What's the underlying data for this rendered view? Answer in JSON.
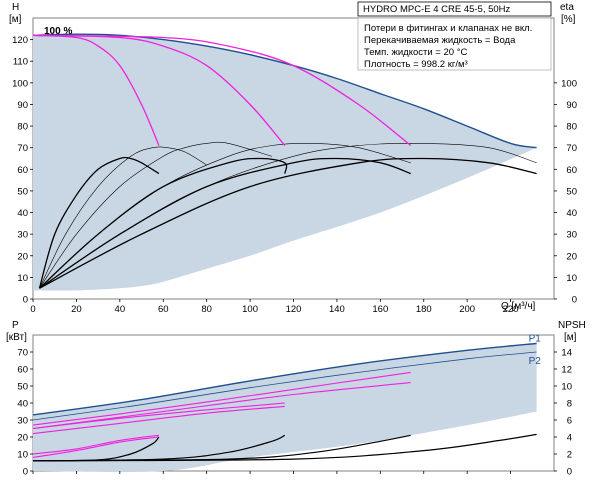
{
  "chart_data": [
    {
      "type": "line",
      "id": "upper",
      "left_axis": {
        "label": "H",
        "unit": "[м]",
        "range": [
          0,
          130
        ],
        "ticks": [
          0,
          10,
          20,
          30,
          40,
          50,
          60,
          70,
          80,
          90,
          100,
          110,
          120
        ]
      },
      "right_axis": {
        "label": "eta",
        "unit": "[%]",
        "range": [
          0,
          130
        ],
        "ticks": [
          0,
          10,
          20,
          30,
          40,
          50,
          60,
          70,
          80,
          90,
          100
        ]
      },
      "x_axis": {
        "label": "Q [м³/ч]",
        "range": [
          0,
          240
        ],
        "ticks": [
          0,
          20,
          40,
          60,
          80,
          100,
          120,
          140,
          160,
          180,
          200,
          220
        ]
      },
      "info_box": {
        "title": "HYDRO MPC-E 4 CRE 45-5, 50Hz",
        "lines": [
          "Потери в фитингах и клапанах не вкл.",
          "Перекачиваемая жидкость = Вода",
          "Темп. жидкости = 20 °C",
          "Плотность = 998.2 кг/м³"
        ]
      },
      "speed_label": "100 %",
      "grid": false,
      "colors": {
        "envelope_fill": "#c9d6e4",
        "envelope_edge": "#1f4f8f",
        "system": "#ee22dd",
        "efficiency": "#000000"
      },
      "envelope_top": [
        [
          0,
          122
        ],
        [
          20,
          122.5
        ],
        [
          40,
          122
        ],
        [
          60,
          120
        ],
        [
          80,
          117
        ],
        [
          100,
          113
        ],
        [
          120,
          108
        ],
        [
          140,
          102
        ],
        [
          160,
          95
        ],
        [
          180,
          88
        ],
        [
          200,
          80
        ],
        [
          220,
          72
        ],
        [
          232,
          70
        ]
      ],
      "envelope_bottom": [
        [
          232,
          70
        ],
        [
          200,
          56
        ],
        [
          160,
          40
        ],
        [
          120,
          27
        ],
        [
          100,
          20
        ],
        [
          80,
          14
        ],
        [
          60,
          8
        ],
        [
          50,
          6
        ],
        [
          40,
          5
        ],
        [
          20,
          4
        ],
        [
          0,
          4
        ]
      ],
      "system_curves": [
        {
          "points": [
            [
              0,
              122
            ],
            [
              20,
              121
            ],
            [
              30,
              117
            ],
            [
              40,
              108
            ],
            [
              50,
              90
            ],
            [
              58,
              71
            ]
          ]
        },
        {
          "points": [
            [
              0,
              122
            ],
            [
              40,
              121
            ],
            [
              60,
              117
            ],
            [
              80,
              108
            ],
            [
              100,
              90
            ],
            [
              116,
              71
            ]
          ]
        },
        {
          "points": [
            [
              0,
              122
            ],
            [
              60,
              121
            ],
            [
              90,
              117
            ],
            [
              120,
              108
            ],
            [
              150,
              90
            ],
            [
              174,
              71
            ]
          ]
        }
      ],
      "efficiency_curves": [
        {
          "weight": "bold",
          "points": [
            [
              3,
              5
            ],
            [
              10,
              30
            ],
            [
              20,
              48
            ],
            [
              30,
              60
            ],
            [
              40,
              65
            ],
            [
              45,
              65
            ],
            [
              50,
              63
            ],
            [
              58,
              58
            ]
          ]
        },
        {
          "weight": "thin",
          "points": [
            [
              3,
              5
            ],
            [
              15,
              30
            ],
            [
              30,
              52
            ],
            [
              45,
              66
            ],
            [
              55,
              70
            ],
            [
              62,
              70
            ],
            [
              70,
              68
            ],
            [
              80,
              62
            ]
          ]
        },
        {
          "weight": "thin",
          "points": [
            [
              3,
              5
            ],
            [
              20,
              30
            ],
            [
              40,
              52
            ],
            [
              60,
              66
            ],
            [
              70,
              70
            ],
            [
              80,
              72
            ],
            [
              90,
              72
            ],
            [
              110,
              66
            ]
          ]
        },
        {
          "weight": "bold",
          "points": [
            [
              3,
              5
            ],
            [
              30,
              30
            ],
            [
              60,
              52
            ],
            [
              90,
              63
            ],
            [
              105,
              65
            ],
            [
              116,
              63
            ],
            [
              116,
              58
            ]
          ]
        },
        {
          "weight": "thin",
          "points": [
            [
              3,
              5
            ],
            [
              30,
              30
            ],
            [
              60,
              52
            ],
            [
              90,
              66
            ],
            [
              110,
              71
            ],
            [
              130,
              72
            ],
            [
              150,
              70
            ],
            [
              174,
              63
            ]
          ]
        },
        {
          "weight": "bold",
          "points": [
            [
              3,
              5
            ],
            [
              40,
              30
            ],
            [
              80,
              52
            ],
            [
              120,
              63
            ],
            [
              140,
              65
            ],
            [
              160,
              63
            ],
            [
              174,
              58
            ]
          ]
        },
        {
          "weight": "thin",
          "points": [
            [
              3,
              5
            ],
            [
              40,
              30
            ],
            [
              80,
              52
            ],
            [
              120,
              66
            ],
            [
              150,
              71
            ],
            [
              180,
              72
            ],
            [
              210,
              70
            ],
            [
              232,
              63
            ]
          ]
        },
        {
          "weight": "bold",
          "points": [
            [
              3,
              5
            ],
            [
              50,
              30
            ],
            [
              100,
              52
            ],
            [
              150,
              63
            ],
            [
              180,
              65
            ],
            [
              210,
              63
            ],
            [
              232,
              58
            ]
          ]
        }
      ]
    },
    {
      "type": "line",
      "id": "lower",
      "left_axis": {
        "label": "P",
        "unit": "[кВт]",
        "range": [
          0,
          80
        ],
        "ticks": [
          0,
          10,
          20,
          30,
          40,
          50,
          60,
          70
        ]
      },
      "right_axis": {
        "label": "NPSH",
        "unit": "[м]",
        "range": [
          0,
          16
        ],
        "ticks": [
          0,
          2,
          4,
          6,
          8,
          10,
          12,
          14
        ]
      },
      "x_axis": {
        "range": [
          0,
          240
        ]
      },
      "series": [
        {
          "name": "P1",
          "points": [
            [
              0,
              33
            ],
            [
              50,
              42
            ],
            [
              100,
              53
            ],
            [
              150,
              63
            ],
            [
              200,
              71
            ],
            [
              232,
              75
            ]
          ]
        },
        {
          "name": "P2",
          "points": [
            [
              0,
              30
            ],
            [
              50,
              39
            ],
            [
              100,
              49
            ],
            [
              150,
              58
            ],
            [
              200,
              66
            ],
            [
              232,
              70
            ]
          ]
        }
      ],
      "lower_fill_top": [
        [
          0,
          33
        ],
        [
          50,
          42
        ],
        [
          100,
          53
        ],
        [
          150,
          63
        ],
        [
          200,
          71
        ],
        [
          232,
          75
        ]
      ],
      "lower_fill_bottom": [
        [
          232,
          35
        ],
        [
          200,
          27
        ],
        [
          150,
          16
        ],
        [
          100,
          8
        ],
        [
          60,
          0
        ],
        [
          0,
          0
        ]
      ],
      "system_curves": [
        {
          "points": [
            [
              0,
              8
            ],
            [
              20,
              12
            ],
            [
              40,
              17
            ],
            [
              58,
              20
            ]
          ]
        },
        {
          "points": [
            [
              0,
              10
            ],
            [
              20,
              13
            ],
            [
              40,
              18
            ],
            [
              58,
              21
            ]
          ]
        },
        {
          "points": [
            [
              0,
              22
            ],
            [
              40,
              28
            ],
            [
              80,
              34
            ],
            [
              116,
              38
            ]
          ]
        },
        {
          "points": [
            [
              0,
              25
            ],
            [
              40,
              31
            ],
            [
              80,
              36
            ],
            [
              116,
              40
            ]
          ]
        },
        {
          "points": [
            [
              0,
              27
            ],
            [
              60,
              37
            ],
            [
              120,
              48
            ],
            [
              174,
              58
            ]
          ]
        },
        {
          "points": [
            [
              0,
              25
            ],
            [
              60,
              35
            ],
            [
              120,
              45
            ],
            [
              174,
              52
            ]
          ]
        }
      ],
      "npsh_curves": [
        {
          "points": [
            [
              0,
              1.2
            ],
            [
              30,
              1.3
            ],
            [
              45,
              2
            ],
            [
              55,
              3.2
            ],
            [
              58,
              4
            ]
          ]
        },
        {
          "points": [
            [
              0,
              1.2
            ],
            [
              60,
              1.4
            ],
            [
              90,
              2.2
            ],
            [
              110,
              3.5
            ],
            [
              116,
              4.2
            ]
          ]
        },
        {
          "points": [
            [
              0,
              1.2
            ],
            [
              90,
              1.4
            ],
            [
              130,
              2.2
            ],
            [
              160,
              3.5
            ],
            [
              174,
              4.2
            ]
          ]
        },
        {
          "points": [
            [
              0,
              1.2
            ],
            [
              120,
              1.4
            ],
            [
              180,
              2.4
            ],
            [
              215,
              3.6
            ],
            [
              232,
              4.3
            ]
          ]
        }
      ]
    }
  ]
}
